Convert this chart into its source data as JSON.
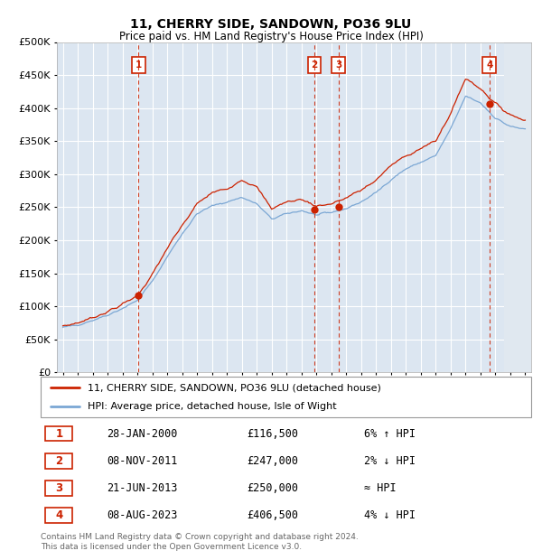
{
  "title": "11, CHERRY SIDE, SANDOWN, PO36 9LU",
  "subtitle": "Price paid vs. HM Land Registry's House Price Index (HPI)",
  "ylim": [
    0,
    500000
  ],
  "yticks": [
    0,
    50000,
    100000,
    150000,
    200000,
    250000,
    300000,
    350000,
    400000,
    450000,
    500000
  ],
  "ytick_labels": [
    "£0",
    "£50K",
    "£100K",
    "£150K",
    "£200K",
    "£250K",
    "£300K",
    "£350K",
    "£400K",
    "£450K",
    "£500K"
  ],
  "xlim_start": 1994.6,
  "xlim_end": 2026.4,
  "bg_color": "#dce6f1",
  "grid_color": "#ffffff",
  "hpi_color": "#7ba7d4",
  "price_color": "#cc2200",
  "legend_house": "11, CHERRY SIDE, SANDOWN, PO36 9LU (detached house)",
  "legend_hpi": "HPI: Average price, detached house, Isle of Wight",
  "transactions": [
    {
      "num": 1,
      "date": "28-JAN-2000",
      "price": 116500,
      "rel": "6% ↑ HPI",
      "year": 2000.08
    },
    {
      "num": 2,
      "date": "08-NOV-2011",
      "price": 247000,
      "rel": "2% ↓ HPI",
      "year": 2011.85
    },
    {
      "num": 3,
      "date": "21-JUN-2013",
      "price": 250000,
      "rel": "≈ HPI",
      "year": 2013.47
    },
    {
      "num": 4,
      "date": "08-AUG-2023",
      "price": 406500,
      "rel": "4% ↓ HPI",
      "year": 2023.6
    }
  ],
  "footer_line1": "Contains HM Land Registry data © Crown copyright and database right 2024.",
  "footer_line2": "This data is licensed under the Open Government Licence v3.0.",
  "hpi_curve": {
    "points_x": [
      1995,
      1996,
      1997,
      1998,
      1999,
      2000,
      2001,
      2002,
      2003,
      2004,
      2005,
      2006,
      2007,
      2008,
      2009,
      2010,
      2011,
      2012,
      2013,
      2014,
      2015,
      2016,
      2017,
      2018,
      2019,
      2020,
      2021,
      2022,
      2023,
      2024,
      2025,
      2026
    ],
    "points_y": [
      68000,
      72000,
      79000,
      87000,
      97000,
      109000,
      138000,
      175000,
      210000,
      240000,
      252000,
      258000,
      265000,
      255000,
      232000,
      240000,
      245000,
      238000,
      242000,
      248000,
      258000,
      272000,
      292000,
      308000,
      318000,
      328000,
      368000,
      418000,
      408000,
      385000,
      372000,
      368000
    ]
  },
  "red_curve": {
    "points_x": [
      1995,
      1996,
      1997,
      1998,
      1999,
      2000,
      2001,
      2002,
      2003,
      2004,
      2005,
      2006,
      2007,
      2008,
      2009,
      2010,
      2011,
      2012,
      2013,
      2014,
      2015,
      2016,
      2017,
      2018,
      2019,
      2020,
      2021,
      2022,
      2023,
      2024,
      2025,
      2026
    ],
    "points_y": [
      70000,
      75000,
      83000,
      92000,
      103000,
      116500,
      148000,
      188000,
      222000,
      255000,
      272000,
      278000,
      292000,
      280000,
      248000,
      258000,
      262000,
      252000,
      255000,
      264000,
      276000,
      291000,
      313000,
      328000,
      339000,
      350000,
      392000,
      445000,
      430000,
      406500,
      390000,
      382000
    ]
  }
}
